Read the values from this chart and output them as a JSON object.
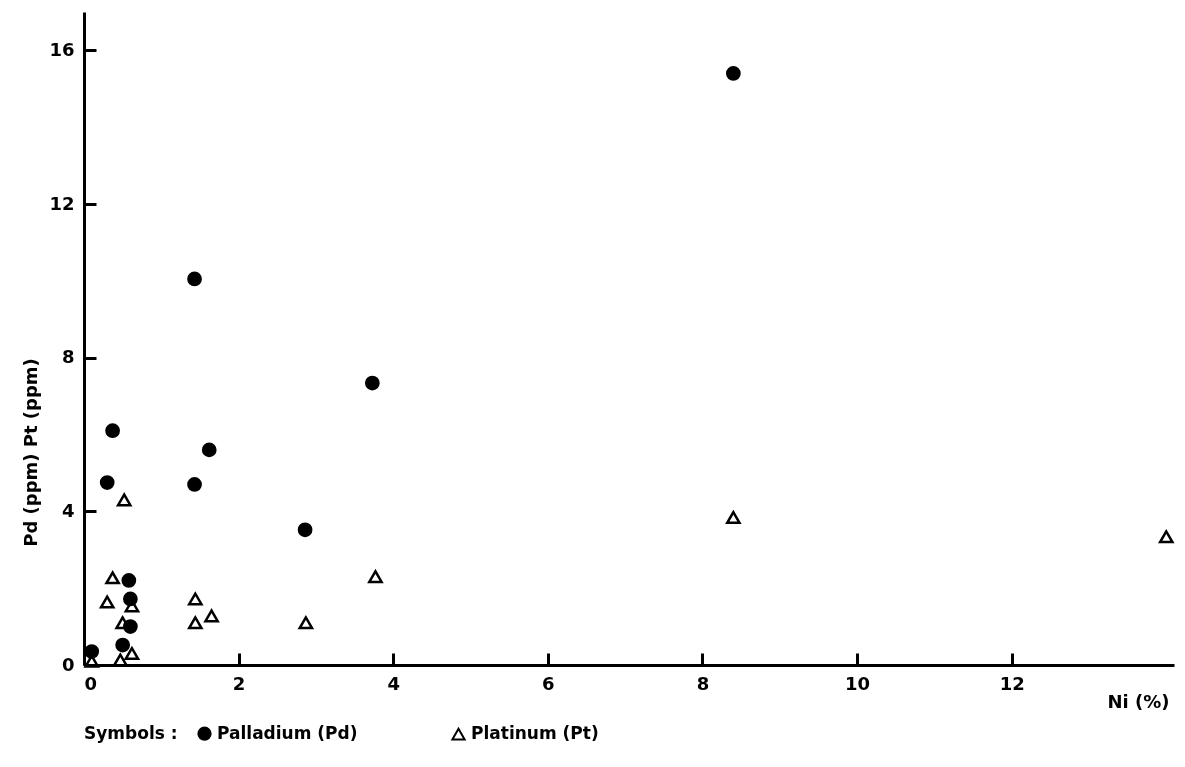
{
  "chart_data": {
    "type": "scatter",
    "xlabel": "Ni (%)",
    "ylabel": "Pd (ppm)   Pt (ppm)",
    "legend_title": "Symbols :",
    "xlim": [
      0,
      14.1
    ],
    "ylim": [
      0,
      17
    ],
    "xticks": [
      0,
      2,
      4,
      6,
      8,
      10,
      12
    ],
    "yticks": [
      0,
      4,
      8,
      12,
      16
    ],
    "grid": false,
    "legend": "bottom",
    "series": [
      {
        "name": "Palladium (Pd)",
        "color": "#000000",
        "marker": "circle",
        "x": [
          0.37,
          0.3,
          1.62,
          1.43,
          0.58,
          0.6,
          0.6,
          0.5,
          0.1,
          1.43,
          3.73,
          2.86,
          8.4
        ],
        "values": [
          6.1,
          4.75,
          5.6,
          4.7,
          2.2,
          1.72,
          1.0,
          0.52,
          0.35,
          10.05,
          7.34,
          3.52,
          15.4
        ]
      },
      {
        "name": "Platinum (Pt)",
        "color": "#000000",
        "marker": "triangle",
        "x": [
          0.52,
          0.37,
          0.3,
          0.62,
          0.5,
          0.62,
          0.47,
          0.1,
          1.44,
          1.65,
          1.44,
          3.77,
          2.87,
          8.4,
          14.0
        ],
        "values": [
          4.3,
          2.27,
          1.64,
          1.54,
          1.1,
          0.3,
          0.13,
          0.1,
          1.72,
          1.28,
          1.1,
          2.3,
          1.1,
          3.84,
          3.34
        ]
      }
    ]
  }
}
